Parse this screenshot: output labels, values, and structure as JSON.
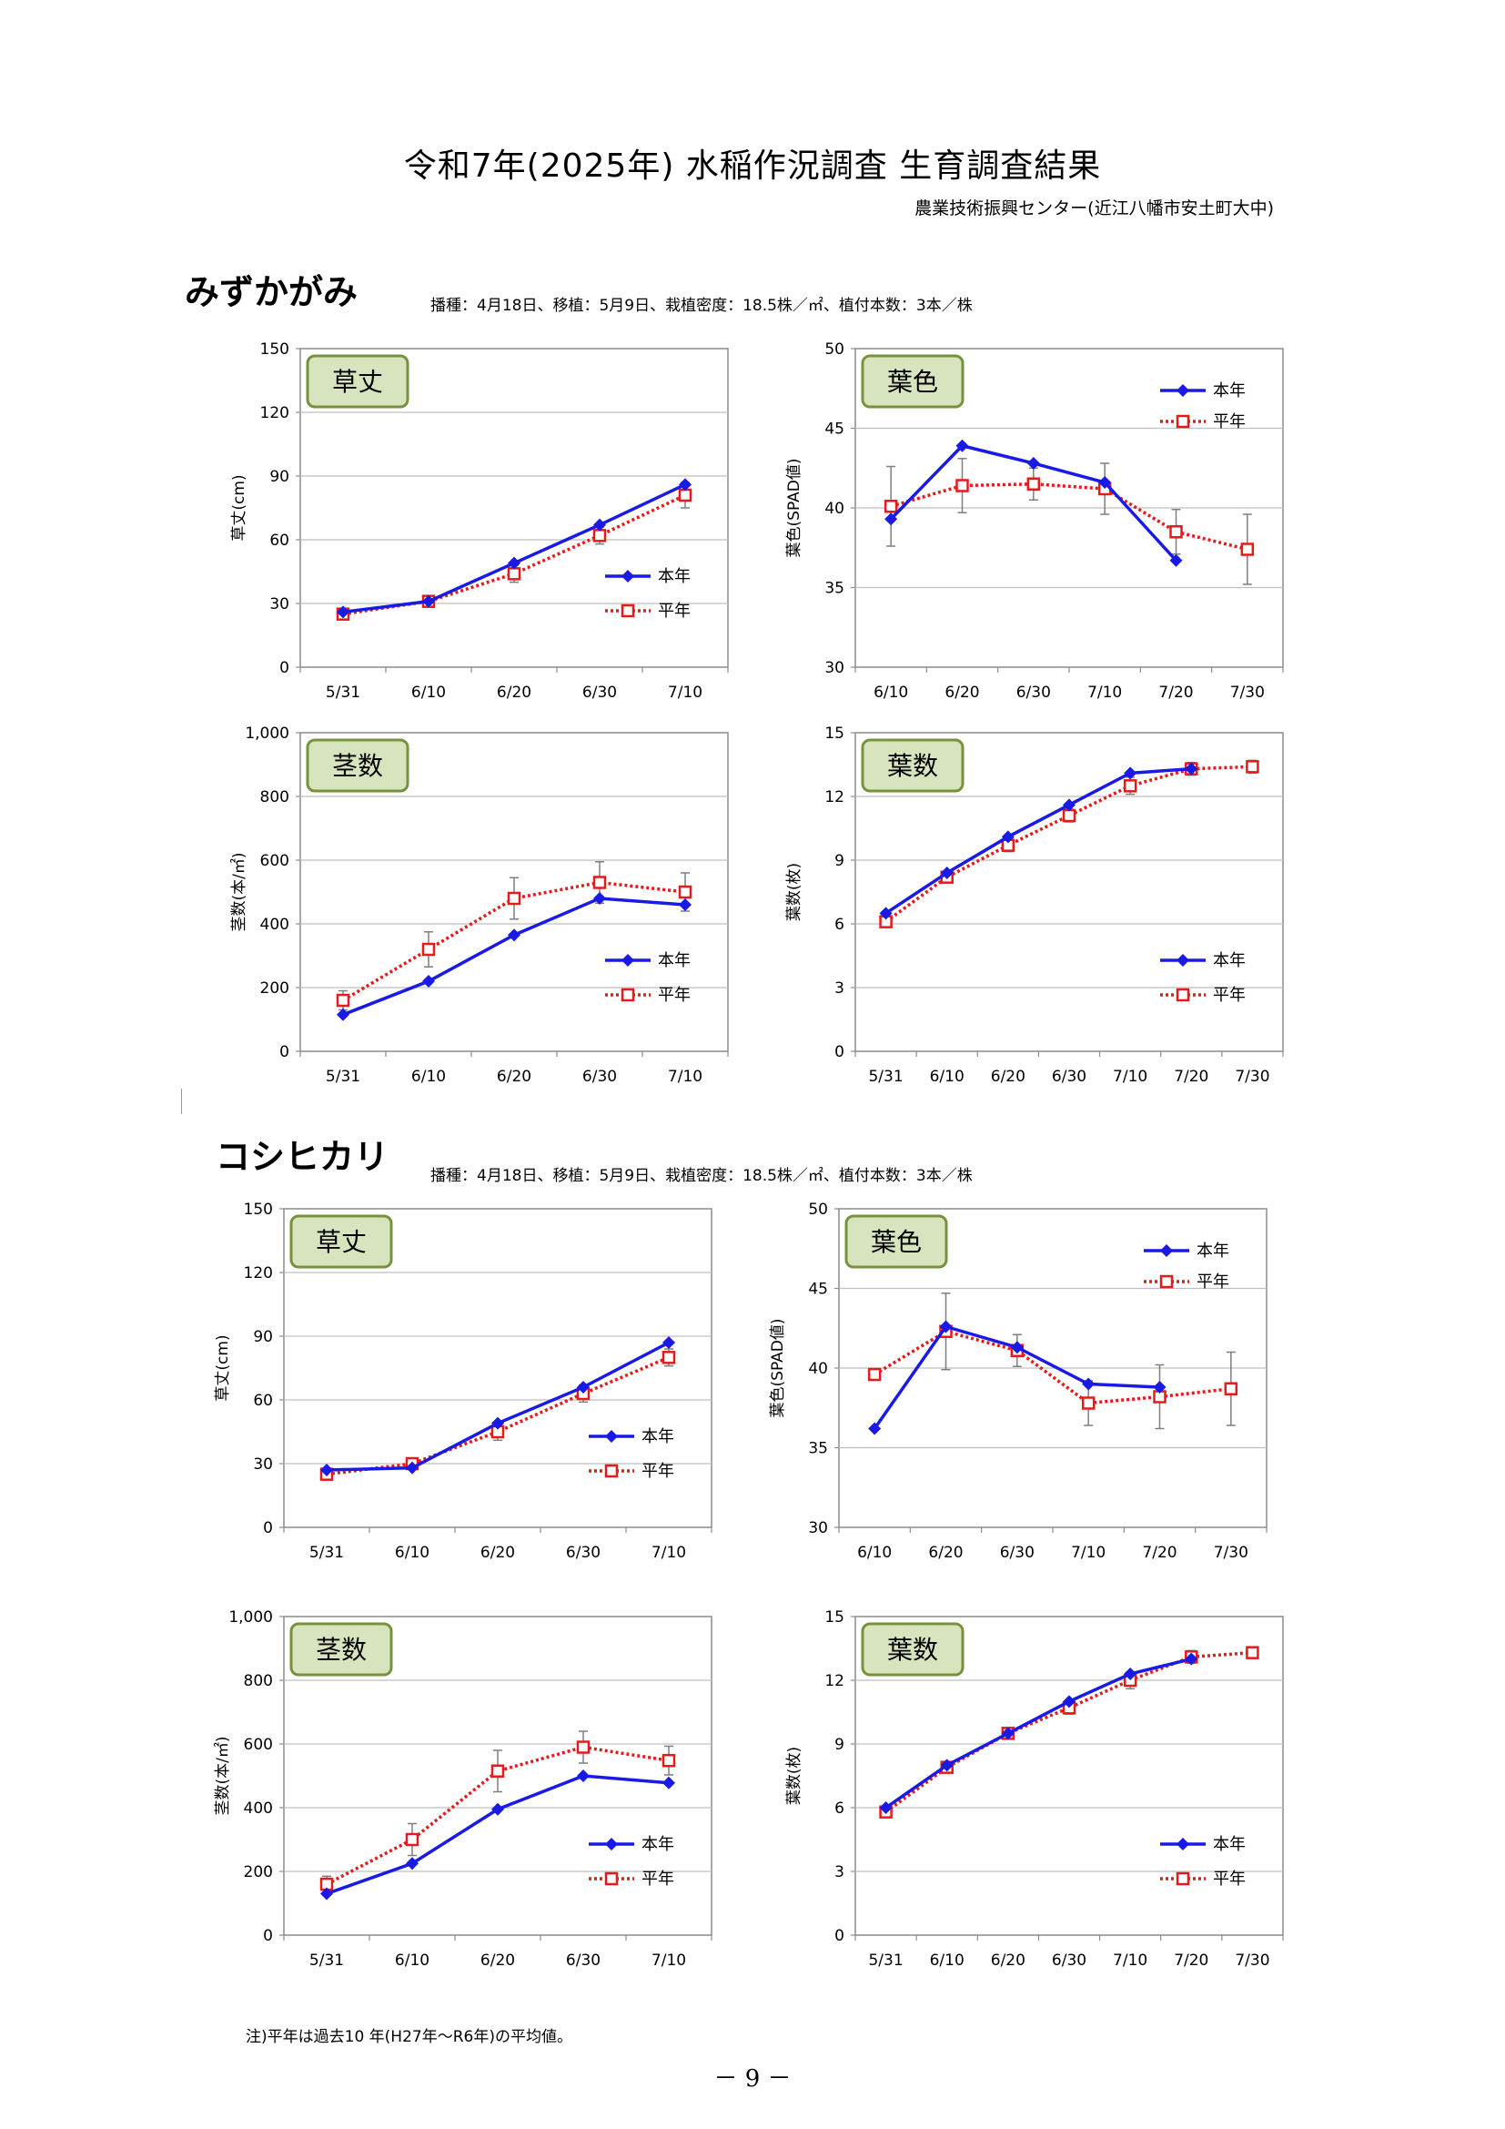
{
  "title": "令和7年(2025年)  水稲作況調査  生育調査結果",
  "organization": "農業技術振興センター(近江八幡市安土町大中)",
  "footnote": "注)平年は過去10 年(H27年～R6年)の平均値。",
  "page_number": "－ 9 －",
  "legend": {
    "current": "本年",
    "normal": "平年"
  },
  "colors": {
    "current": "#1a1ae6",
    "normal": "#e61a1a",
    "box_fill": "#d7e4bd",
    "box_border": "#76923c",
    "grid": "#bfbfbf",
    "error_bar": "#7f7f7f"
  },
  "sections": [
    {
      "variety": "みずかがみ",
      "conditions": "播種：4月18日、移植：5月9日、栽植密度：18.5株／㎡、植付本数：3本／株"
    },
    {
      "variety": "コシヒカリ",
      "conditions": "播種：4月18日、移植：5月9日、栽植密度：18.5株／㎡、植付本数：3本／株"
    }
  ],
  "chart_data": [
    {
      "id": "mizukagami-height",
      "type": "line",
      "box_label": "草丈",
      "ylabel": "草丈(cm)",
      "xlabel": "",
      "categories": [
        "5/31",
        "6/10",
        "6/20",
        "6/30",
        "7/10"
      ],
      "ylim": [
        0,
        150
      ],
      "yticks": [
        "0",
        "30",
        "60",
        "90",
        "120",
        "150"
      ],
      "grid": true,
      "legend_position": "lower-right",
      "series": [
        {
          "name": "本年",
          "values": [
            26,
            31,
            49,
            67,
            86
          ]
        },
        {
          "name": "平年",
          "values": [
            25,
            31,
            44,
            62,
            81
          ],
          "error": [
            1,
            2,
            4,
            4,
            6
          ]
        }
      ]
    },
    {
      "id": "mizukagami-leafcolor",
      "type": "line",
      "box_label": "葉色",
      "ylabel": "葉色(SPAD値)",
      "xlabel": "",
      "categories": [
        "6/10",
        "6/20",
        "6/30",
        "7/10",
        "7/20",
        "7/30"
      ],
      "ylim": [
        30,
        50
      ],
      "yticks": [
        "30",
        "35",
        "40",
        "45",
        "50"
      ],
      "grid": true,
      "legend_position": "top-right",
      "series": [
        {
          "name": "本年",
          "values": [
            39.3,
            43.9,
            42.8,
            41.6,
            36.7,
            null
          ]
        },
        {
          "name": "平年",
          "values": [
            40.1,
            41.4,
            41.5,
            41.2,
            38.5,
            37.4
          ],
          "error": [
            2.5,
            1.7,
            1.0,
            1.6,
            1.4,
            2.2
          ]
        }
      ]
    },
    {
      "id": "mizukagami-stems",
      "type": "line",
      "box_label": "茎数",
      "ylabel": "茎数(本/㎡)",
      "xlabel": "",
      "categories": [
        "5/31",
        "6/10",
        "6/20",
        "6/30",
        "7/10"
      ],
      "ylim": [
        0,
        1000
      ],
      "yticks": [
        "0",
        "200",
        "400",
        "600",
        "800",
        "1,000"
      ],
      "grid": true,
      "legend_position": "lower-right",
      "series": [
        {
          "name": "本年",
          "values": [
            115,
            220,
            365,
            480,
            460
          ]
        },
        {
          "name": "平年",
          "values": [
            160,
            320,
            480,
            530,
            500
          ],
          "error": [
            30,
            55,
            65,
            65,
            60
          ]
        }
      ]
    },
    {
      "id": "mizukagami-leaves",
      "type": "line",
      "box_label": "葉数",
      "ylabel": "葉数(枚)",
      "xlabel": "",
      "categories": [
        "5/31",
        "6/10",
        "6/20",
        "6/30",
        "7/10",
        "7/20",
        "7/30"
      ],
      "ylim": [
        0,
        15
      ],
      "yticks": [
        "0",
        "3",
        "6",
        "9",
        "12",
        "15"
      ],
      "grid": true,
      "legend_position": "lower-right",
      "series": [
        {
          "name": "本年",
          "values": [
            6.5,
            8.4,
            10.1,
            11.6,
            13.1,
            13.3,
            null
          ]
        },
        {
          "name": "平年",
          "values": [
            6.1,
            8.2,
            9.7,
            11.1,
            12.5,
            13.3,
            13.4
          ],
          "error": [
            0.2,
            0.2,
            0.3,
            0.3,
            0.4,
            0.3,
            0.3
          ]
        }
      ]
    },
    {
      "id": "koshihikari-height",
      "type": "line",
      "box_label": "草丈",
      "ylabel": "草丈(cm)",
      "xlabel": "",
      "categories": [
        "5/31",
        "6/10",
        "6/20",
        "6/30",
        "7/10"
      ],
      "ylim": [
        0,
        150
      ],
      "yticks": [
        "0",
        "30",
        "60",
        "90",
        "120",
        "150"
      ],
      "grid": true,
      "legend_position": "lower-right",
      "series": [
        {
          "name": "本年",
          "values": [
            27,
            28,
            49,
            66,
            87
          ]
        },
        {
          "name": "平年",
          "values": [
            25,
            30,
            45,
            63,
            80
          ],
          "error": [
            1,
            2,
            4,
            4,
            4
          ]
        }
      ]
    },
    {
      "id": "koshihikari-leafcolor",
      "type": "line",
      "box_label": "葉色",
      "ylabel": "葉色(SPAD値)",
      "xlabel": "",
      "categories": [
        "6/10",
        "6/20",
        "6/30",
        "7/10",
        "7/20",
        "7/30"
      ],
      "ylim": [
        30,
        50
      ],
      "yticks": [
        "30",
        "35",
        "40",
        "45",
        "50"
      ],
      "grid": true,
      "legend_position": "top-right",
      "series": [
        {
          "name": "本年",
          "values": [
            36.2,
            42.6,
            41.3,
            39.0,
            38.8,
            null
          ]
        },
        {
          "name": "平年",
          "values": [
            39.6,
            42.3,
            41.1,
            37.8,
            38.2,
            38.7
          ],
          "error": [
            0.2,
            2.4,
            1.0,
            1.4,
            2.0,
            2.3
          ]
        }
      ]
    },
    {
      "id": "koshihikari-stems",
      "type": "line",
      "box_label": "茎数",
      "ylabel": "茎数(本/㎡)",
      "xlabel": "",
      "categories": [
        "5/31",
        "6/10",
        "6/20",
        "6/30",
        "7/10"
      ],
      "ylim": [
        0,
        1000
      ],
      "yticks": [
        "0",
        "200",
        "400",
        "600",
        "800",
        "1,000"
      ],
      "grid": true,
      "legend_position": "lower-right",
      "series": [
        {
          "name": "本年",
          "values": [
            130,
            225,
            395,
            500,
            478
          ]
        },
        {
          "name": "平年",
          "values": [
            160,
            300,
            515,
            590,
            548
          ],
          "error": [
            25,
            50,
            65,
            50,
            45
          ]
        }
      ]
    },
    {
      "id": "koshihikari-leaves",
      "type": "line",
      "box_label": "葉数",
      "ylabel": "葉数(枚)",
      "xlabel": "",
      "categories": [
        "5/31",
        "6/10",
        "6/20",
        "6/30",
        "7/10",
        "7/20",
        "7/30"
      ],
      "ylim": [
        0,
        15
      ],
      "yticks": [
        "0",
        "3",
        "6",
        "9",
        "12",
        "15"
      ],
      "grid": true,
      "legend_position": "lower-right",
      "series": [
        {
          "name": "本年",
          "values": [
            6.0,
            8.0,
            9.5,
            11.0,
            12.3,
            13.0,
            null
          ]
        },
        {
          "name": "平年",
          "values": [
            5.8,
            7.9,
            9.5,
            10.7,
            12.0,
            13.1,
            13.3
          ],
          "error": [
            0.2,
            0.2,
            0.2,
            0.3,
            0.4,
            0.3,
            0.2
          ]
        }
      ]
    }
  ]
}
